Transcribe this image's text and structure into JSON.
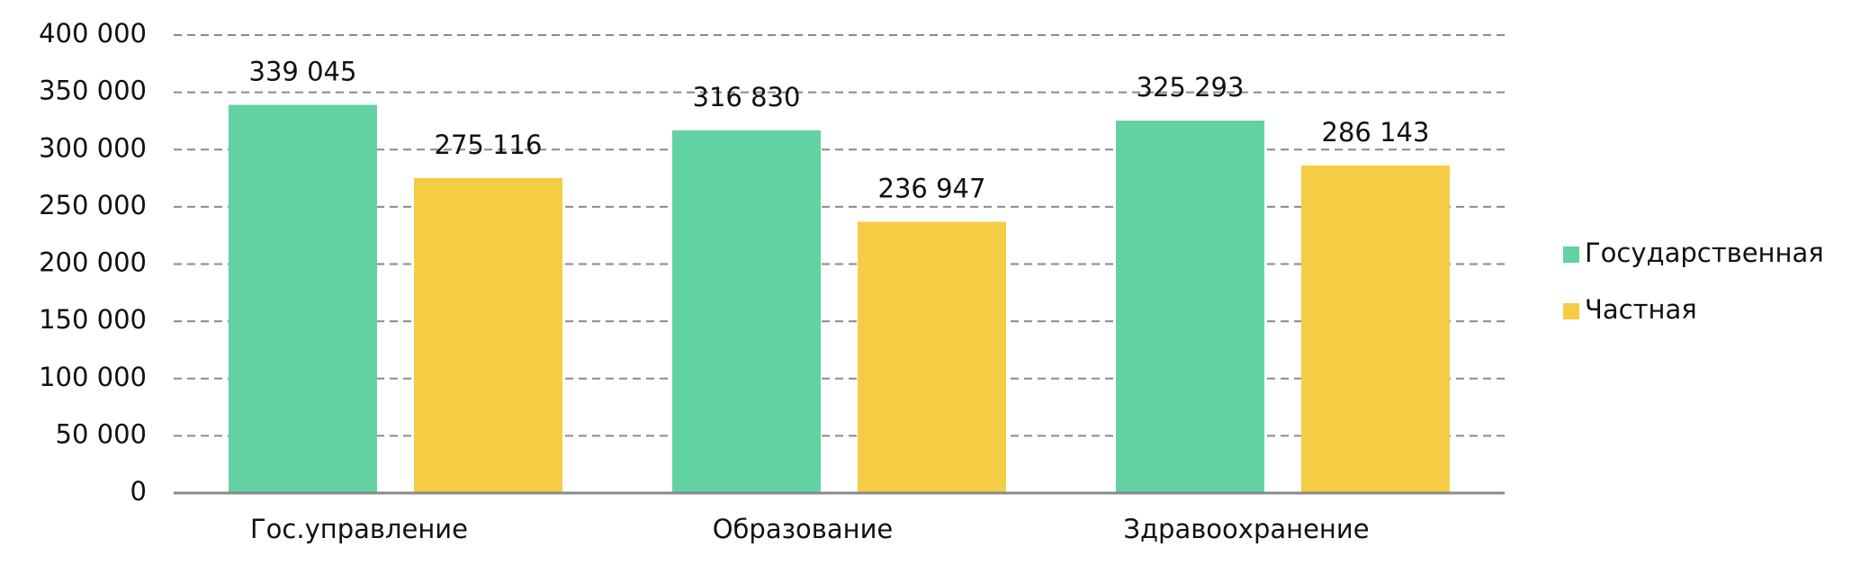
{
  "chart_data": {
    "type": "bar",
    "categories": [
      "Гос.управление",
      "Образование",
      "Здравоохранение"
    ],
    "series": [
      {
        "name": "Государственная",
        "color": "#62d2a2",
        "values": [
          339045,
          316830,
          325293
        ],
        "value_labels": [
          "339 045",
          "316 830",
          "325 293"
        ]
      },
      {
        "name": "Частная",
        "color": "#f5cd45",
        "values": [
          275116,
          236947,
          286143
        ],
        "value_labels": [
          "275 116",
          "236 947",
          "286 143"
        ]
      }
    ],
    "ylim": [
      0,
      400000
    ],
    "yticks": [
      0,
      {
        "value": 50000,
        "label": "50 000"
      },
      {
        "value": 100000,
        "label": "100 000"
      },
      {
        "value": 150000,
        "label": "150 000"
      },
      {
        "value": 200000,
        "label": "200 000"
      },
      {
        "value": 250000,
        "label": "250 000"
      },
      {
        "value": 300000,
        "label": "300 000"
      },
      {
        "value": 350000,
        "label": "350 000"
      },
      {
        "value": 400000,
        "label": "400 000"
      }
    ],
    "grid": true,
    "legend": "right"
  }
}
